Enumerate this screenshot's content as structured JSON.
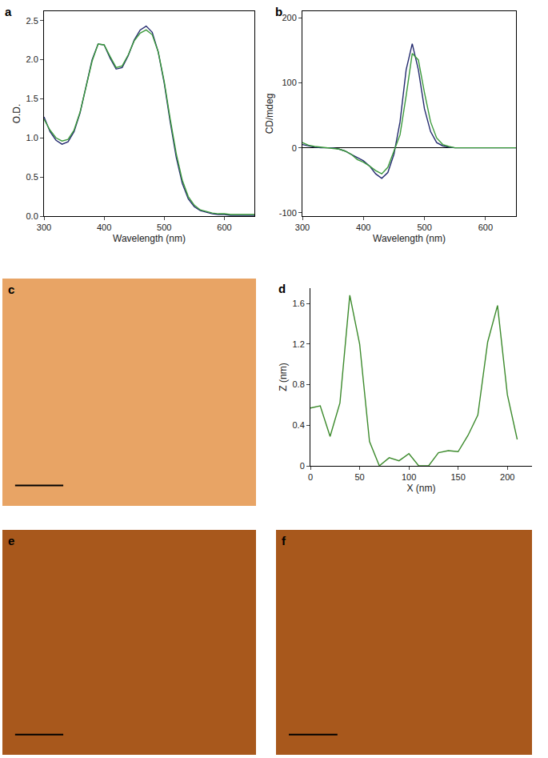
{
  "chart_data": [
    {
      "title": "a",
      "type": "line",
      "xlabel": "Wavelength (nm)",
      "ylabel": "O.D.",
      "x": [
        300,
        310,
        320,
        330,
        340,
        350,
        360,
        370,
        380,
        390,
        400,
        410,
        420,
        430,
        440,
        450,
        460,
        470,
        480,
        490,
        500,
        510,
        520,
        530,
        540,
        550,
        560,
        570,
        580,
        590,
        600,
        610,
        620,
        630,
        640,
        650
      ],
      "series": [
        {
          "color": "#232a6e",
          "values": [
            1.27,
            1.08,
            0.97,
            0.92,
            0.95,
            1.08,
            1.32,
            1.65,
            2.0,
            2.2,
            2.19,
            2.02,
            1.88,
            1.9,
            2.05,
            2.25,
            2.38,
            2.43,
            2.35,
            2.1,
            1.7,
            1.2,
            0.75,
            0.42,
            0.22,
            0.12,
            0.07,
            0.05,
            0.03,
            0.02,
            0.02,
            0.01,
            0.01,
            0.01,
            0.01,
            0.01
          ]
        },
        {
          "color": "#3c9a3c",
          "values": [
            1.24,
            1.1,
            1.0,
            0.96,
            0.98,
            1.1,
            1.33,
            1.65,
            1.98,
            2.2,
            2.19,
            2.04,
            1.9,
            1.92,
            2.06,
            2.24,
            2.34,
            2.38,
            2.32,
            2.1,
            1.72,
            1.24,
            0.8,
            0.46,
            0.25,
            0.14,
            0.08,
            0.06,
            0.04,
            0.03,
            0.03,
            0.02,
            0.02,
            0.02,
            0.02,
            0.02
          ]
        }
      ],
      "xlim": [
        300,
        650
      ],
      "xticks": [
        300,
        400,
        500,
        600
      ],
      "ylim": [
        0,
        2.62
      ],
      "yticks": [
        {
          "value": 0,
          "label": "0.0"
        },
        {
          "value": 0.5,
          "label": "0.5"
        },
        {
          "value": 1,
          "label": "1.0"
        },
        {
          "value": 1.5,
          "label": "1.5"
        },
        {
          "value": 2,
          "label": "2.0"
        },
        {
          "value": 2.5,
          "label": "2.5"
        }
      ]
    },
    {
      "title": "b",
      "type": "line",
      "xlabel": "Wavelength (nm)",
      "ylabel": "CD/mdeg",
      "x": [
        300,
        310,
        320,
        330,
        340,
        350,
        360,
        370,
        380,
        390,
        400,
        410,
        420,
        430,
        440,
        450,
        460,
        470,
        480,
        490,
        500,
        510,
        520,
        530,
        540,
        550,
        560,
        570,
        580,
        590,
        600,
        610,
        620,
        630,
        640,
        650
      ],
      "series": [
        {
          "color": "#232a6e",
          "values": [
            5,
            3,
            1,
            0,
            0,
            0,
            -2,
            -5,
            -10,
            -15,
            -20,
            -28,
            -40,
            -47,
            -38,
            -10,
            40,
            120,
            160,
            120,
            60,
            25,
            8,
            3,
            1,
            0,
            0,
            0,
            0,
            0,
            0,
            0,
            0,
            0,
            0,
            0
          ]
        },
        {
          "color": "#3c9a3c",
          "values": [
            8,
            4,
            2,
            1,
            0,
            -1,
            -2,
            -5,
            -10,
            -18,
            -22,
            -28,
            -35,
            -40,
            -30,
            -5,
            20,
            80,
            145,
            135,
            85,
            40,
            15,
            5,
            2,
            0,
            0,
            0,
            0,
            0,
            0,
            0,
            0,
            0,
            0,
            0
          ]
        }
      ],
      "xlim": [
        300,
        650
      ],
      "xticks": [
        300,
        400,
        500,
        600
      ],
      "ylim": [
        -105,
        210
      ],
      "yticks": [
        -100,
        0,
        100,
        200
      ]
    },
    {
      "title": "c",
      "type": "image",
      "color": "#e8a465"
    },
    {
      "title": "d",
      "type": "line",
      "xlabel": "X (nm)",
      "ylabel": "Z (nm)",
      "x": [
        0,
        10,
        20,
        30,
        40,
        50,
        60,
        70,
        80,
        90,
        100,
        110,
        120,
        130,
        140,
        150,
        160,
        170,
        180,
        190,
        200,
        210
      ],
      "series": [
        {
          "color": "#3c8a2c",
          "values": [
            0.57,
            0.59,
            0.29,
            0.62,
            1.68,
            1.2,
            0.24,
            0.0,
            0.08,
            0.05,
            0.12,
            0.0,
            0.0,
            0.13,
            0.15,
            0.14,
            0.3,
            0.5,
            1.22,
            1.58,
            0.7,
            0.26
          ]
        }
      ],
      "xlim": [
        0,
        225
      ],
      "xticks": [
        0,
        50,
        100,
        150,
        200
      ],
      "ylim": [
        0,
        1.75
      ],
      "yticks": [
        0,
        0.4,
        0.8,
        1.2,
        1.6
      ]
    },
    {
      "title": "e",
      "type": "image",
      "color": "#a8581c"
    },
    {
      "title": "f",
      "type": "image",
      "color": "#a8581c"
    }
  ]
}
